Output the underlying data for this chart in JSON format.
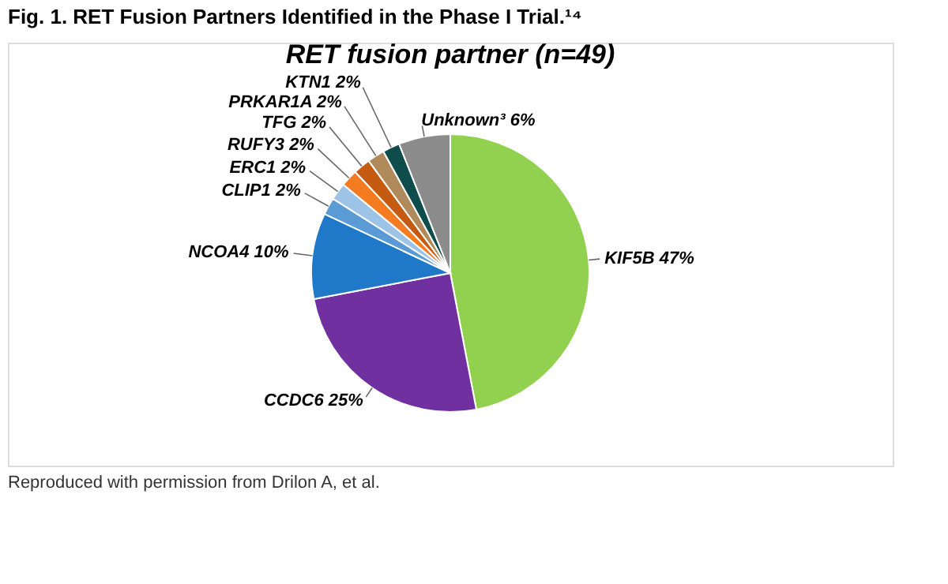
{
  "chart_data": {
    "type": "pie",
    "title": "Fig. 1. RET Fusion Partners Identified in the Phase I Trial.¹⁴",
    "subtitle": "RET fusion partner (n=49)",
    "categories": [
      "KIF5B",
      "CCDC6",
      "NCOA4",
      "CLIP1",
      "ERC1",
      "RUFY3",
      "TFG",
      "PRKAR1A",
      "KTN1",
      "Unknown³"
    ],
    "values": [
      47,
      25,
      10,
      2,
      2,
      2,
      2,
      2,
      2,
      6
    ],
    "value_labels": [
      "47%",
      "25%",
      "10%",
      "2%",
      "2%",
      "2%",
      "2%",
      "2%",
      "2%",
      "6%"
    ],
    "colors": [
      "#92d050",
      "#7030a0",
      "#1f78c8",
      "#5b9bd5",
      "#9dc3e6",
      "#f47b20",
      "#c55a11",
      "#b08a5a",
      "#0f4c4c",
      "#8c8c8c"
    ],
    "annotations": [
      "Reproduced with permission from Drilon A, et al."
    ]
  }
}
